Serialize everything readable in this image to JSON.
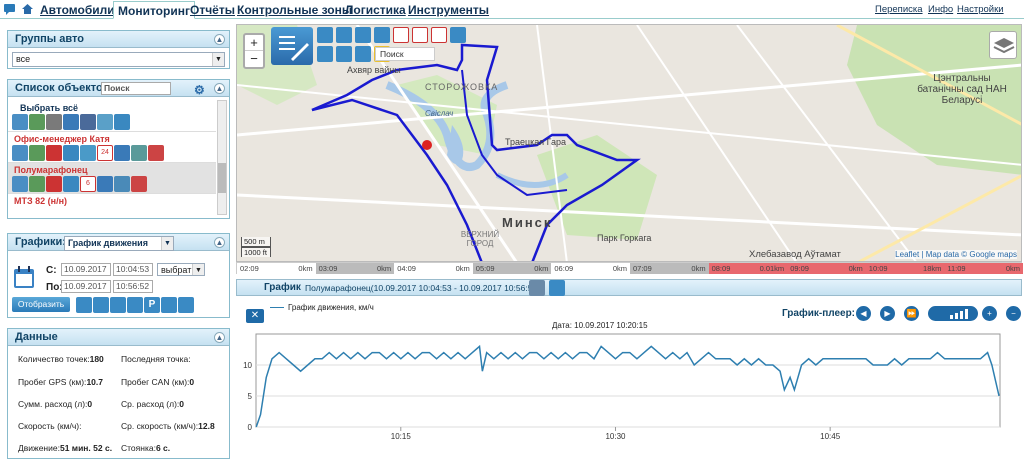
{
  "nav": {
    "tabs": [
      "Автомобили",
      "Мониторинг",
      "Отчёты",
      "Контрольные зоны",
      "Логистика",
      "Инструменты"
    ],
    "right_links": [
      "Переписка",
      "Инфо",
      "Настройки"
    ]
  },
  "groups": {
    "title": "Группы авто",
    "selected": "все"
  },
  "objects": {
    "title": "Список объектов",
    "search_placeholder": "Поиск",
    "select_all": "Выбрать всё",
    "items": [
      {
        "name": "Офис-менеджер Катя",
        "badge": "24"
      },
      {
        "name": "Полумарафонец",
        "badge": "6"
      },
      {
        "name": "МТЗ 82 (н/н)",
        "badge": ""
      }
    ]
  },
  "charts": {
    "title": "Графики:",
    "selected": "График движения",
    "from_label": "С:",
    "to_label": "По:",
    "from_date": "10.09.2017",
    "from_time": "10:04:53",
    "to_date": "10.09.2017",
    "to_time": "10:56:52",
    "pick_label": "выбрать",
    "show_button": "Отобразить"
  },
  "data": {
    "title": "Данные",
    "rows": [
      {
        "l1": "Количество точек:",
        "v1": "180",
        "l2": "Последняя точка:",
        "v2": ""
      },
      {
        "l1": "Пробег GPS (км):",
        "v1": "10.7",
        "l2": "Пробег CAN (км):",
        "v2": "0"
      },
      {
        "l1": "Сумм. расход (л):",
        "v1": "0",
        "l2": "Ср. расход (л):",
        "v2": "0"
      },
      {
        "l1": "Скорость (км/ч):",
        "v1": "",
        "l2": "Ср. скорость (км/ч):",
        "v2": "12.8"
      },
      {
        "l1": "Движение:",
        "v1": "51 мин. 52 с.",
        "l2": "Стоянка:",
        "v2": "6 с."
      }
    ]
  },
  "map": {
    "search_placeholder": "Поиск",
    "labels": {
      "storozhovka": "СТОРОЖОВКА",
      "minsk": "Минск",
      "upper_town": "ВЕРХНИЙ ГОРОД",
      "gorky_park": "Парк Горкага",
      "troitsk": "Траецкая Гара",
      "svislach": "Свiслач",
      "botanic": "Цэнтральны батанiчны сад НАН Беларусi",
      "bakery": "Хлебазавод Аўтамат",
      "victims": "Ахвяр вайны"
    },
    "scale_m": "500 m",
    "scale_ft": "1000 ft",
    "attribution": "Leaflet | Map data © Google maps"
  },
  "timeline": [
    {
      "t": "02:09",
      "km": "0km",
      "hl": false
    },
    {
      "t": "03:09",
      "km": "0km",
      "hl": false
    },
    {
      "t": "04:09",
      "km": "0km",
      "hl": false
    },
    {
      "t": "05:09",
      "km": "0km",
      "hl": false
    },
    {
      "t": "06:09",
      "km": "0km",
      "hl": false
    },
    {
      "t": "07:09",
      "km": "0km",
      "hl": false
    },
    {
      "t": "08:09",
      "km": "0.01km",
      "hl": true
    },
    {
      "t": "09:09",
      "km": "0km",
      "hl": true
    },
    {
      "t": "10:09",
      "km": "18km",
      "hl": true
    },
    {
      "t": "11:09",
      "km": "0km",
      "hl": true
    }
  ],
  "graph": {
    "title": "График",
    "subtitle": "Полумарафонец(10.09.2017 10:04:53 - 10.09.2017 10:56:52)",
    "legend": "График движения, км/ч",
    "date_label": "Дата: 10.09.2017 10:20:15",
    "player_label": "График-плеер:"
  },
  "chart_data": {
    "type": "line",
    "title": "",
    "xlabel": "",
    "ylabel": "",
    "ylim": [
      0,
      15
    ],
    "yticks": [
      0,
      5,
      10
    ],
    "xticks": [
      "10:15",
      "10:30",
      "10:45"
    ],
    "x_minutes_start": 4.883,
    "x_minutes_end": 56.867,
    "series": [
      {
        "name": "График движения, км/ч",
        "color": "#2e7fb0",
        "points": [
          [
            4.9,
            0
          ],
          [
            5.2,
            2
          ],
          [
            5.6,
            8
          ],
          [
            6.0,
            11
          ],
          [
            6.5,
            12
          ],
          [
            7.0,
            11
          ],
          [
            7.5,
            10
          ],
          [
            8.0,
            9
          ],
          [
            8.5,
            10
          ],
          [
            9.0,
            11
          ],
          [
            9.5,
            11
          ],
          [
            10.0,
            12
          ],
          [
            10.5,
            11
          ],
          [
            11.0,
            12
          ],
          [
            11.5,
            11
          ],
          [
            12.0,
            12
          ],
          [
            12.5,
            11
          ],
          [
            13.0,
            12
          ],
          [
            13.5,
            12
          ],
          [
            14.0,
            11
          ],
          [
            14.5,
            12
          ],
          [
            15.0,
            11
          ],
          [
            15.5,
            12
          ],
          [
            16.0,
            11
          ],
          [
            16.5,
            12
          ],
          [
            17.0,
            12
          ],
          [
            17.5,
            11
          ],
          [
            18.0,
            12
          ],
          [
            18.5,
            11
          ],
          [
            19.0,
            12
          ],
          [
            19.5,
            11
          ],
          [
            20.0,
            12
          ],
          [
            20.5,
            13
          ],
          [
            20.7,
            9
          ],
          [
            21.0,
            12
          ],
          [
            21.5,
            11
          ],
          [
            22.0,
            12
          ],
          [
            22.5,
            11
          ],
          [
            23.0,
            12
          ],
          [
            23.5,
            11
          ],
          [
            24.0,
            12
          ],
          [
            24.5,
            12
          ],
          [
            25.0,
            11
          ],
          [
            25.5,
            12
          ],
          [
            26.0,
            11
          ],
          [
            26.5,
            12
          ],
          [
            27.0,
            11
          ],
          [
            27.5,
            12
          ],
          [
            28.0,
            12
          ],
          [
            28.5,
            11
          ],
          [
            29.0,
            13
          ],
          [
            29.5,
            12
          ],
          [
            30.0,
            11
          ],
          [
            30.5,
            12
          ],
          [
            31.0,
            12
          ],
          [
            31.5,
            11
          ],
          [
            32.0,
            12
          ],
          [
            32.5,
            13
          ],
          [
            33.0,
            12
          ],
          [
            33.5,
            11
          ],
          [
            34.0,
            12
          ],
          [
            34.5,
            11
          ],
          [
            35.0,
            12
          ],
          [
            35.5,
            10
          ],
          [
            36.0,
            11
          ],
          [
            36.5,
            12
          ],
          [
            37.0,
            11
          ],
          [
            37.5,
            11
          ],
          [
            38.0,
            11
          ],
          [
            38.5,
            10
          ],
          [
            39.0,
            11
          ],
          [
            39.5,
            10
          ],
          [
            40.0,
            11
          ],
          [
            40.5,
            10
          ],
          [
            41.0,
            10
          ],
          [
            41.5,
            9
          ],
          [
            41.8,
            6
          ],
          [
            42.2,
            8
          ],
          [
            42.5,
            6
          ],
          [
            43.0,
            10
          ],
          [
            43.5,
            11
          ],
          [
            44.0,
            10
          ],
          [
            44.5,
            11
          ],
          [
            45.0,
            11
          ],
          [
            45.5,
            11
          ],
          [
            46.0,
            11
          ],
          [
            46.5,
            11
          ],
          [
            47.0,
            11
          ],
          [
            47.5,
            11
          ],
          [
            48.0,
            10
          ],
          [
            48.5,
            10
          ],
          [
            49.0,
            10
          ],
          [
            49.5,
            11
          ],
          [
            50.0,
            10
          ],
          [
            50.5,
            11
          ],
          [
            51.0,
            11
          ],
          [
            51.5,
            11
          ],
          [
            52.0,
            11
          ],
          [
            52.5,
            12
          ],
          [
            53.0,
            11
          ],
          [
            53.5,
            11
          ],
          [
            54.0,
            11
          ],
          [
            54.5,
            11
          ],
          [
            55.0,
            11
          ],
          [
            55.5,
            11
          ],
          [
            56.0,
            12
          ],
          [
            56.3,
            10
          ],
          [
            56.8,
            5
          ]
        ]
      }
    ]
  },
  "colors": {
    "route": "#1a1ad0",
    "chart_line": "#2e7fb0",
    "panel_border": "#8bbbcc",
    "highlight": "#e8686e"
  }
}
